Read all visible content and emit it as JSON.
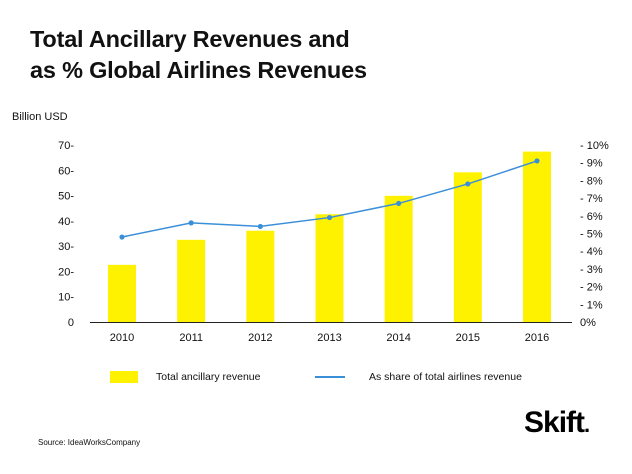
{
  "title_line1": "Total Ancillary Revenues and",
  "title_line2": "as % Global Airlines Revenues",
  "y_unit_label": "Billion USD",
  "chart_data": {
    "type": "bar",
    "categories": [
      "2010",
      "2011",
      "2012",
      "2013",
      "2014",
      "2015",
      "2016"
    ],
    "series": [
      {
        "name": "Total ancillary revenue",
        "type": "bar",
        "axis": "left",
        "color": "#fff200",
        "values": [
          22.6,
          32.5,
          36.1,
          42.6,
          49.9,
          59.2,
          67.4
        ]
      },
      {
        "name": "As share of total airlines revenue",
        "type": "line",
        "axis": "right",
        "color": "#3b8fd9",
        "values": [
          4.8,
          5.6,
          5.4,
          5.9,
          6.7,
          7.8,
          9.1
        ]
      }
    ],
    "ylim_left": [
      0,
      70
    ],
    "yticks_left": [
      "0",
      "10-",
      "20-",
      "30-",
      "40-",
      "50-",
      "60-",
      "70-"
    ],
    "ylim_right": [
      0,
      10
    ],
    "yticks_right": [
      "0%",
      "- 1%",
      "- 2%",
      "- 3%",
      "- 4%",
      "- 5%",
      "- 6%",
      "- 7%",
      "- 8%",
      "- 9%",
      "- 10%"
    ],
    "grid": false,
    "legend_position": "bottom"
  },
  "source": "Source: IdeaWorksCompany",
  "brand": {
    "name": "Skift",
    "mark": "."
  }
}
